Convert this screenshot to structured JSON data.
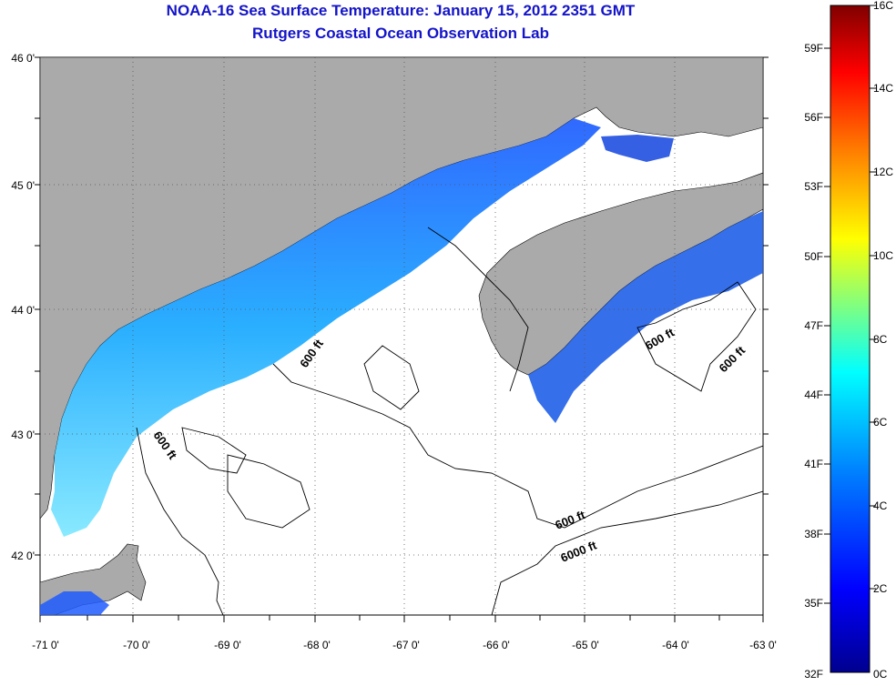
{
  "title_line1": "NOAA-16 Sea Surface Temperature:  January 15, 2012 2351 GMT",
  "title_line2": "Rutgers Coastal Ocean Observation Lab",
  "map": {
    "lat_labels": [
      "46 0'",
      "45 0'",
      "44 0'",
      "43 0'",
      "42 0'"
    ],
    "lon_labels": [
      "-71 0'",
      "-70 0'",
      "-69 0'",
      "-68 0'",
      "-67 0'",
      "-66 0'",
      "-65 0'",
      "-64 0'",
      "-63 0'"
    ],
    "contour_labels": [
      "600 ft",
      "600 ft",
      "600 ft",
      "600 ft",
      "600 ft",
      "6000 ft"
    ]
  },
  "colorbar": {
    "fahrenheit_labels": [
      "59F",
      "56F",
      "53F",
      "50F",
      "47F",
      "44F",
      "41F",
      "38F",
      "35F",
      "32F"
    ],
    "celsius_labels": [
      "16C",
      "14C",
      "12C",
      "10C",
      "8C",
      "6C",
      "4C",
      "2C",
      "0C"
    ]
  },
  "colors": {
    "land": "#aaaaaa",
    "title": "#1414c8",
    "colormap": [
      "#00008f",
      "#0000ff",
      "#0080ff",
      "#00ffff",
      "#80ff80",
      "#ffff00",
      "#ff8000",
      "#ff0000",
      "#800000"
    ]
  }
}
